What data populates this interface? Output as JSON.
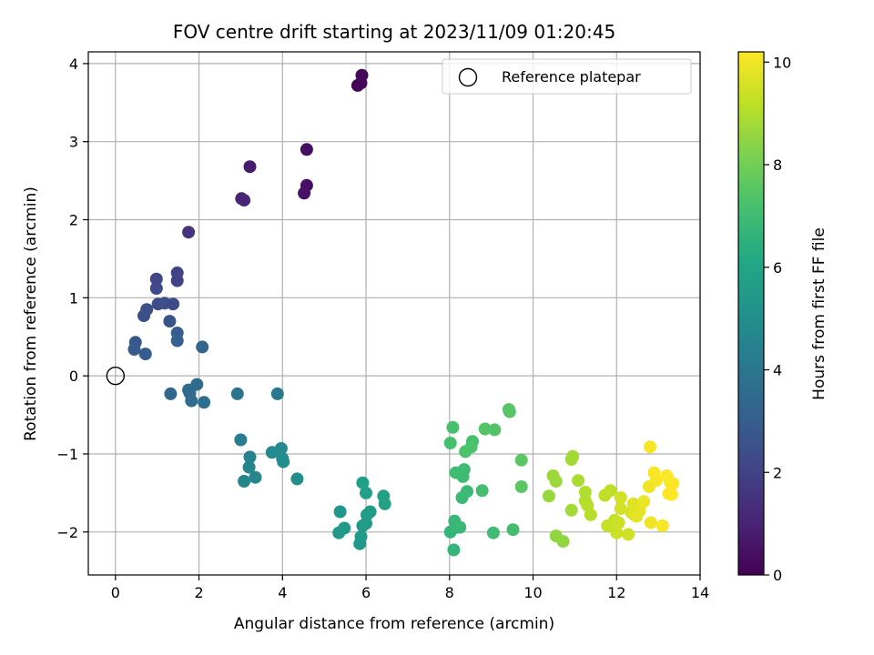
{
  "chart_data": {
    "type": "scatter",
    "title": "FOV centre drift starting at 2023/11/09 01:20:45",
    "xlabel": "Angular distance from reference (arcmin)",
    "ylabel": "Rotation from reference (arcmin)",
    "colorbar_label": "Hours from first FF file",
    "xlim": [
      -0.65,
      14.0
    ],
    "ylim": [
      -2.55,
      4.15
    ],
    "clim": [
      0,
      10.2
    ],
    "x_ticks": [
      0,
      2,
      4,
      6,
      8,
      10,
      12,
      14
    ],
    "y_ticks": [
      -2,
      -1,
      0,
      1,
      2,
      3,
      4
    ],
    "colorbar_ticks": [
      0,
      2,
      4,
      6,
      8,
      10
    ],
    "grid": true,
    "colormap": "viridis",
    "legend": {
      "position": "top-right",
      "entries": [
        "Reference platepar"
      ]
    },
    "reference_point": {
      "x": 0,
      "y": 0
    },
    "points": [
      {
        "x": 5.8,
        "y": 3.72,
        "t": 0.1
      },
      {
        "x": 5.88,
        "y": 3.75,
        "t": 0.15
      },
      {
        "x": 5.9,
        "y": 3.85,
        "t": 0.2
      },
      {
        "x": 4.58,
        "y": 2.9,
        "t": 0.35
      },
      {
        "x": 4.58,
        "y": 2.44,
        "t": 0.45
      },
      {
        "x": 4.52,
        "y": 2.34,
        "t": 0.5
      },
      {
        "x": 3.22,
        "y": 2.68,
        "t": 0.8
      },
      {
        "x": 3.02,
        "y": 2.27,
        "t": 1.0
      },
      {
        "x": 3.08,
        "y": 2.25,
        "t": 1.05
      },
      {
        "x": 1.75,
        "y": 1.84,
        "t": 1.5
      },
      {
        "x": 1.48,
        "y": 1.32,
        "t": 2.0
      },
      {
        "x": 1.48,
        "y": 1.22,
        "t": 2.0
      },
      {
        "x": 0.98,
        "y": 1.24,
        "t": 2.1
      },
      {
        "x": 0.98,
        "y": 1.12,
        "t": 2.2
      },
      {
        "x": 1.02,
        "y": 0.92,
        "t": 2.3
      },
      {
        "x": 1.18,
        "y": 0.93,
        "t": 2.4
      },
      {
        "x": 1.38,
        "y": 0.92,
        "t": 2.3
      },
      {
        "x": 0.75,
        "y": 0.85,
        "t": 2.4
      },
      {
        "x": 0.68,
        "y": 0.77,
        "t": 2.5
      },
      {
        "x": 1.3,
        "y": 0.7,
        "t": 2.6
      },
      {
        "x": 1.48,
        "y": 0.55,
        "t": 3.0
      },
      {
        "x": 1.48,
        "y": 0.45,
        "t": 3.1
      },
      {
        "x": 2.08,
        "y": 0.37,
        "t": 3.3
      },
      {
        "x": 0.48,
        "y": 0.43,
        "t": 2.8
      },
      {
        "x": 0.45,
        "y": 0.34,
        "t": 2.9
      },
      {
        "x": 0.72,
        "y": 0.28,
        "t": 3.0
      },
      {
        "x": 1.32,
        "y": -0.23,
        "t": 3.4
      },
      {
        "x": 1.75,
        "y": -0.18,
        "t": 3.5
      },
      {
        "x": 1.95,
        "y": -0.11,
        "t": 3.6
      },
      {
        "x": 1.78,
        "y": -0.22,
        "t": 3.5
      },
      {
        "x": 1.82,
        "y": -0.32,
        "t": 3.6
      },
      {
        "x": 2.12,
        "y": -0.34,
        "t": 3.7
      },
      {
        "x": 2.92,
        "y": -0.23,
        "t": 3.9
      },
      {
        "x": 3.88,
        "y": -0.23,
        "t": 4.1
      },
      {
        "x": 3.0,
        "y": -0.82,
        "t": 4.3
      },
      {
        "x": 3.22,
        "y": -1.04,
        "t": 4.5
      },
      {
        "x": 3.2,
        "y": -1.17,
        "t": 4.6
      },
      {
        "x": 3.08,
        "y": -1.35,
        "t": 4.7
      },
      {
        "x": 3.35,
        "y": -1.3,
        "t": 4.7
      },
      {
        "x": 3.75,
        "y": -0.98,
        "t": 4.8
      },
      {
        "x": 3.97,
        "y": -0.93,
        "t": 4.8
      },
      {
        "x": 4.0,
        "y": -1.06,
        "t": 4.9
      },
      {
        "x": 4.02,
        "y": -1.1,
        "t": 4.9
      },
      {
        "x": 4.35,
        "y": -1.32,
        "t": 5.0
      },
      {
        "x": 5.38,
        "y": -1.74,
        "t": 5.3
      },
      {
        "x": 5.48,
        "y": -1.95,
        "t": 5.4
      },
      {
        "x": 5.35,
        "y": -2.01,
        "t": 5.4
      },
      {
        "x": 5.85,
        "y": -2.15,
        "t": 5.5
      },
      {
        "x": 5.88,
        "y": -2.06,
        "t": 5.5
      },
      {
        "x": 5.92,
        "y": -1.92,
        "t": 5.5
      },
      {
        "x": 6.0,
        "y": -1.89,
        "t": 5.6
      },
      {
        "x": 6.02,
        "y": -1.78,
        "t": 5.6
      },
      {
        "x": 6.1,
        "y": -1.74,
        "t": 5.6
      },
      {
        "x": 6.0,
        "y": -1.5,
        "t": 5.7
      },
      {
        "x": 5.92,
        "y": -1.37,
        "t": 5.7
      },
      {
        "x": 6.42,
        "y": -1.54,
        "t": 5.8
      },
      {
        "x": 6.45,
        "y": -1.64,
        "t": 5.8
      },
      {
        "x": 8.08,
        "y": -0.66,
        "t": 7.2
      },
      {
        "x": 8.02,
        "y": -0.86,
        "t": 7.2
      },
      {
        "x": 8.38,
        "y": -0.97,
        "t": 7.3
      },
      {
        "x": 8.55,
        "y": -0.84,
        "t": 7.2
      },
      {
        "x": 8.52,
        "y": -0.91,
        "t": 7.3
      },
      {
        "x": 8.85,
        "y": -0.68,
        "t": 7.4
      },
      {
        "x": 9.08,
        "y": -0.69,
        "t": 7.4
      },
      {
        "x": 9.42,
        "y": -0.43,
        "t": 7.5
      },
      {
        "x": 9.44,
        "y": -0.46,
        "t": 7.5
      },
      {
        "x": 8.15,
        "y": -1.24,
        "t": 7.0
      },
      {
        "x": 8.35,
        "y": -1.2,
        "t": 7.0
      },
      {
        "x": 8.32,
        "y": -1.29,
        "t": 7.0
      },
      {
        "x": 8.42,
        "y": -1.48,
        "t": 6.9
      },
      {
        "x": 8.3,
        "y": -1.56,
        "t": 6.9
      },
      {
        "x": 8.78,
        "y": -1.47,
        "t": 7.1
      },
      {
        "x": 9.72,
        "y": -1.08,
        "t": 7.6
      },
      {
        "x": 9.72,
        "y": -1.42,
        "t": 7.6
      },
      {
        "x": 8.12,
        "y": -1.86,
        "t": 6.8
      },
      {
        "x": 8.18,
        "y": -1.94,
        "t": 6.8
      },
      {
        "x": 8.25,
        "y": -1.94,
        "t": 6.8
      },
      {
        "x": 8.02,
        "y": -2.0,
        "t": 6.7
      },
      {
        "x": 8.1,
        "y": -2.23,
        "t": 6.7
      },
      {
        "x": 9.05,
        "y": -2.01,
        "t": 7.0
      },
      {
        "x": 9.52,
        "y": -1.97,
        "t": 7.1
      },
      {
        "x": 10.95,
        "y": -1.03,
        "t": 8.8
      },
      {
        "x": 10.92,
        "y": -1.07,
        "t": 8.8
      },
      {
        "x": 10.48,
        "y": -1.28,
        "t": 8.7
      },
      {
        "x": 10.55,
        "y": -1.35,
        "t": 8.7
      },
      {
        "x": 10.38,
        "y": -1.54,
        "t": 8.6
      },
      {
        "x": 11.08,
        "y": -1.34,
        "t": 8.9
      },
      {
        "x": 11.25,
        "y": -1.49,
        "t": 9.0
      },
      {
        "x": 11.25,
        "y": -1.6,
        "t": 9.0
      },
      {
        "x": 11.3,
        "y": -1.66,
        "t": 9.1
      },
      {
        "x": 11.38,
        "y": -1.78,
        "t": 9.1
      },
      {
        "x": 10.92,
        "y": -1.72,
        "t": 8.8
      },
      {
        "x": 10.55,
        "y": -2.05,
        "t": 8.5
      },
      {
        "x": 10.72,
        "y": -2.12,
        "t": 8.5
      },
      {
        "x": 11.72,
        "y": -1.53,
        "t": 9.2
      },
      {
        "x": 11.85,
        "y": -1.47,
        "t": 9.2
      },
      {
        "x": 11.78,
        "y": -1.92,
        "t": 9.3
      },
      {
        "x": 11.92,
        "y": -1.9,
        "t": 9.3
      },
      {
        "x": 11.95,
        "y": -1.85,
        "t": 9.3
      },
      {
        "x": 12.0,
        "y": -2.01,
        "t": 9.4
      },
      {
        "x": 12.05,
        "y": -1.88,
        "t": 9.4
      },
      {
        "x": 12.1,
        "y": -1.56,
        "t": 9.5
      },
      {
        "x": 12.1,
        "y": -1.7,
        "t": 9.5
      },
      {
        "x": 12.28,
        "y": -2.03,
        "t": 9.5
      },
      {
        "x": 12.35,
        "y": -1.75,
        "t": 9.6
      },
      {
        "x": 12.4,
        "y": -1.64,
        "t": 9.7
      },
      {
        "x": 12.42,
        "y": -1.78,
        "t": 9.7
      },
      {
        "x": 12.55,
        "y": -1.73,
        "t": 9.8
      },
      {
        "x": 12.48,
        "y": -1.8,
        "t": 9.8
      },
      {
        "x": 12.65,
        "y": -1.61,
        "t": 9.9
      },
      {
        "x": 12.78,
        "y": -1.42,
        "t": 10.0
      },
      {
        "x": 12.8,
        "y": -0.91,
        "t": 10.1
      },
      {
        "x": 12.82,
        "y": -1.88,
        "t": 10.0
      },
      {
        "x": 12.9,
        "y": -1.24,
        "t": 10.1
      },
      {
        "x": 12.95,
        "y": -1.34,
        "t": 10.1
      },
      {
        "x": 13.1,
        "y": -1.92,
        "t": 10.1
      },
      {
        "x": 13.2,
        "y": -1.28,
        "t": 10.15
      },
      {
        "x": 13.28,
        "y": -1.36,
        "t": 10.15
      },
      {
        "x": 13.35,
        "y": -1.38,
        "t": 10.2
      },
      {
        "x": 13.25,
        "y": -1.51,
        "t": 10.2
      },
      {
        "x": 13.32,
        "y": -1.52,
        "t": 10.2
      }
    ]
  }
}
